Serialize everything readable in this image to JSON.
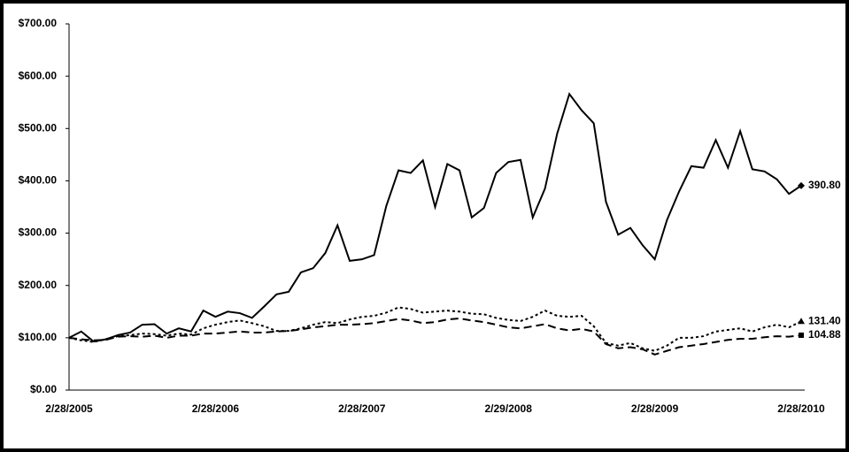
{
  "chart_data": {
    "type": "line",
    "categories": [
      "2/28/2005",
      null,
      null,
      null,
      null,
      null,
      null,
      null,
      null,
      null,
      null,
      null,
      "2/28/2006",
      null,
      null,
      null,
      null,
      null,
      null,
      null,
      null,
      null,
      null,
      null,
      "2/28/2007",
      null,
      null,
      null,
      null,
      null,
      null,
      null,
      null,
      null,
      null,
      null,
      "2/29/2008",
      null,
      null,
      null,
      null,
      null,
      null,
      null,
      null,
      null,
      null,
      null,
      "2/28/2009",
      null,
      null,
      null,
      null,
      null,
      null,
      null,
      null,
      null,
      null,
      null,
      "2/28/2010"
    ],
    "ylim": [
      0,
      700
    ],
    "yticks": [
      {
        "value": 0,
        "label": "$0.00"
      },
      {
        "value": 100,
        "label": "$100.00"
      },
      {
        "value": 200,
        "label": "$200.00"
      },
      {
        "value": 300,
        "label": "$300.00"
      },
      {
        "value": 400,
        "label": "$400.00"
      },
      {
        "value": 500,
        "label": "$500.00"
      },
      {
        "value": 600,
        "label": "$600.00"
      },
      {
        "value": 700,
        "label": "$700.00"
      }
    ],
    "series": [
      {
        "color": "#000000",
        "dash": "solid",
        "marker": "diamond",
        "values": [
          100,
          112,
          93,
          97,
          105,
          110,
          125,
          126,
          108,
          118,
          112,
          152,
          140,
          150,
          147,
          138,
          160,
          183,
          188,
          225,
          233,
          262,
          315,
          247,
          250,
          258,
          352,
          420,
          415,
          439,
          350,
          432,
          420,
          330,
          348,
          415,
          436,
          440,
          330,
          385,
          490,
          566,
          535,
          510,
          360,
          297,
          310,
          277,
          250,
          325,
          380,
          428,
          425,
          478,
          425,
          495,
          422,
          418,
          403,
          375,
          390.8
        ],
        "value_labels": [
          null,
          null,
          null,
          null,
          null,
          null,
          null,
          null,
          null,
          null,
          null,
          null,
          null,
          null,
          null,
          null,
          null,
          null,
          null,
          null,
          null,
          null,
          null,
          null,
          null,
          null,
          null,
          null,
          null,
          null,
          null,
          null,
          null,
          null,
          null,
          null,
          null,
          null,
          null,
          null,
          null,
          null,
          null,
          null,
          null,
          null,
          null,
          null,
          null,
          null,
          null,
          null,
          null,
          null,
          null,
          null,
          null,
          null,
          null,
          null,
          "390.80"
        ]
      },
      {
        "color": "#000000",
        "dash": "dot",
        "marker": "triangle",
        "values": [
          100,
          95,
          92,
          97,
          103,
          105,
          108,
          107,
          104,
          108,
          106,
          118,
          125,
          130,
          133,
          128,
          122,
          113,
          113,
          118,
          125,
          130,
          128,
          135,
          140,
          142,
          148,
          158,
          155,
          148,
          150,
          152,
          150,
          146,
          145,
          138,
          134,
          132,
          140,
          152,
          142,
          140,
          142,
          122,
          90,
          85,
          90,
          80,
          75,
          85,
          100,
          100,
          103,
          112,
          115,
          118,
          112,
          120,
          125,
          120,
          131.4
        ],
        "value_labels": [
          null,
          null,
          null,
          null,
          null,
          null,
          null,
          null,
          null,
          null,
          null,
          null,
          null,
          null,
          null,
          null,
          null,
          null,
          null,
          null,
          null,
          null,
          null,
          null,
          null,
          null,
          null,
          null,
          null,
          null,
          null,
          null,
          null,
          null,
          null,
          null,
          null,
          null,
          null,
          null,
          null,
          null,
          null,
          null,
          null,
          null,
          null,
          null,
          null,
          null,
          null,
          null,
          null,
          null,
          null,
          null,
          null,
          null,
          null,
          null,
          "131.40"
        ]
      },
      {
        "color": "#000000",
        "dash": "dash",
        "marker": "square",
        "values": [
          100,
          97,
          95,
          96,
          102,
          103,
          102,
          104,
          100,
          104,
          104,
          108,
          108,
          110,
          112,
          110,
          110,
          112,
          113,
          116,
          120,
          122,
          125,
          125,
          126,
          128,
          132,
          136,
          133,
          128,
          130,
          135,
          137,
          133,
          130,
          125,
          120,
          118,
          122,
          126,
          118,
          114,
          117,
          112,
          88,
          80,
          82,
          78,
          68,
          75,
          82,
          85,
          88,
          92,
          96,
          98,
          98,
          101,
          103,
          102,
          104.88
        ],
        "value_labels": [
          null,
          null,
          null,
          null,
          null,
          null,
          null,
          null,
          null,
          null,
          null,
          null,
          null,
          null,
          null,
          null,
          null,
          null,
          null,
          null,
          null,
          null,
          null,
          null,
          null,
          null,
          null,
          null,
          null,
          null,
          null,
          null,
          null,
          null,
          null,
          null,
          null,
          null,
          null,
          null,
          null,
          null,
          null,
          null,
          null,
          null,
          null,
          null,
          null,
          null,
          null,
          null,
          null,
          null,
          null,
          null,
          null,
          null,
          null,
          null,
          "104.88"
        ]
      }
    ]
  }
}
